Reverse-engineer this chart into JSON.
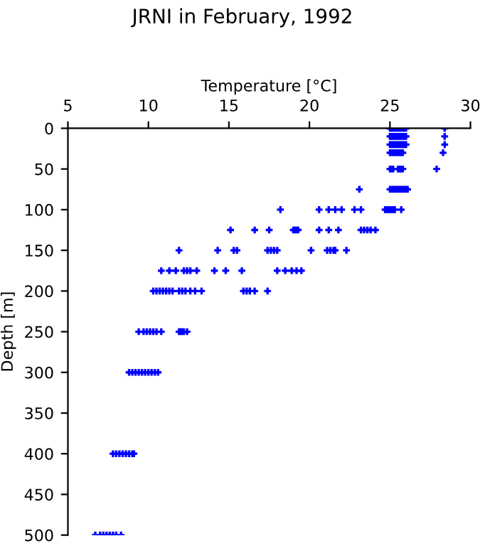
{
  "chart_data": {
    "type": "scatter",
    "title": "JRNI in February, 1992",
    "xlabel": "Temperature [°C]",
    "ylabel": "Depth [m]",
    "xlim": [
      5,
      30
    ],
    "xticks": [
      5,
      10,
      15,
      20,
      25,
      30
    ],
    "ylim": [
      500,
      0
    ],
    "yticks": [
      0,
      50,
      100,
      150,
      200,
      250,
      300,
      350,
      400,
      450,
      500
    ],
    "grid": false,
    "legend": false,
    "marker": "cross",
    "series": [
      {
        "color": "#0000ff",
        "x": [
          25.0,
          25.1,
          25.2,
          25.3,
          25.4,
          25.5,
          25.6,
          25.7,
          25.8,
          25.9,
          26.0,
          28.4,
          25.0,
          25.1,
          25.2,
          25.3,
          25.4,
          25.5,
          25.6,
          25.7,
          25.8,
          25.9,
          26.0,
          28.4,
          25.0,
          25.1,
          25.2,
          25.3,
          25.4,
          25.5,
          25.6,
          25.7,
          25.8,
          25.9,
          26.0,
          28.4,
          25.0,
          25.1,
          25.2,
          25.3,
          25.4,
          25.5,
          25.6,
          25.7,
          25.8,
          28.3,
          25.0,
          25.1,
          25.2,
          25.5,
          25.6,
          25.7,
          25.8,
          27.9,
          23.1,
          25.0,
          25.1,
          25.2,
          25.3,
          25.4,
          25.5,
          25.6,
          25.7,
          25.8,
          25.9,
          26.0,
          26.1,
          18.2,
          20.6,
          21.2,
          21.6,
          22.0,
          22.8,
          23.2,
          24.7,
          24.8,
          24.9,
          25.0,
          25.1,
          25.2,
          25.3,
          25.7,
          15.1,
          16.6,
          17.5,
          19.0,
          19.1,
          19.2,
          19.3,
          20.6,
          21.2,
          21.8,
          23.2,
          23.4,
          23.6,
          23.8,
          24.1,
          11.9,
          14.3,
          15.3,
          15.5,
          17.4,
          17.6,
          17.8,
          18.0,
          20.1,
          21.1,
          21.3,
          21.5,
          21.6,
          22.3,
          10.8,
          11.3,
          11.7,
          12.2,
          12.4,
          12.6,
          13.0,
          14.1,
          14.8,
          15.8,
          18.0,
          18.5,
          18.9,
          19.2,
          19.5,
          10.3,
          10.5,
          10.7,
          10.9,
          11.1,
          11.3,
          11.5,
          11.9,
          12.1,
          12.3,
          12.6,
          12.9,
          13.3,
          15.9,
          16.1,
          16.3,
          16.6,
          17.4,
          9.4,
          9.7,
          9.9,
          10.1,
          10.3,
          10.5,
          10.8,
          11.9,
          12.0,
          12.1,
          12.2,
          12.4,
          8.8,
          9.0,
          9.2,
          9.4,
          9.6,
          9.8,
          10.0,
          10.2,
          10.4,
          10.6,
          7.8,
          8.0,
          8.2,
          8.4,
          8.6,
          8.8,
          9.0,
          9.1,
          6.7,
          7.0,
          7.2,
          7.4,
          7.6,
          7.8,
          8.0,
          8.3
        ],
        "values": [
          0,
          0,
          0,
          0,
          0,
          0,
          0,
          0,
          0,
          0,
          0,
          0,
          10,
          10,
          10,
          10,
          10,
          10,
          10,
          10,
          10,
          10,
          10,
          10,
          20,
          20,
          20,
          20,
          20,
          20,
          20,
          20,
          20,
          20,
          20,
          20,
          30,
          30,
          30,
          30,
          30,
          30,
          30,
          30,
          30,
          30,
          50,
          50,
          50,
          50,
          50,
          50,
          50,
          50,
          75,
          75,
          75,
          75,
          75,
          75,
          75,
          75,
          75,
          75,
          75,
          75,
          75,
          100,
          100,
          100,
          100,
          100,
          100,
          100,
          100,
          100,
          100,
          100,
          100,
          100,
          100,
          100,
          125,
          125,
          125,
          125,
          125,
          125,
          125,
          125,
          125,
          125,
          125,
          125,
          125,
          125,
          125,
          150,
          150,
          150,
          150,
          150,
          150,
          150,
          150,
          150,
          150,
          150,
          150,
          150,
          150,
          175,
          175,
          175,
          175,
          175,
          175,
          175,
          175,
          175,
          175,
          175,
          175,
          175,
          175,
          175,
          200,
          200,
          200,
          200,
          200,
          200,
          200,
          200,
          200,
          200,
          200,
          200,
          200,
          200,
          200,
          200,
          200,
          200,
          250,
          250,
          250,
          250,
          250,
          250,
          250,
          250,
          250,
          250,
          250,
          250,
          300,
          300,
          300,
          300,
          300,
          300,
          300,
          300,
          300,
          300,
          400,
          400,
          400,
          400,
          400,
          400,
          400,
          400,
          500,
          500,
          500,
          500,
          500,
          500,
          500,
          500
        ]
      }
    ]
  }
}
